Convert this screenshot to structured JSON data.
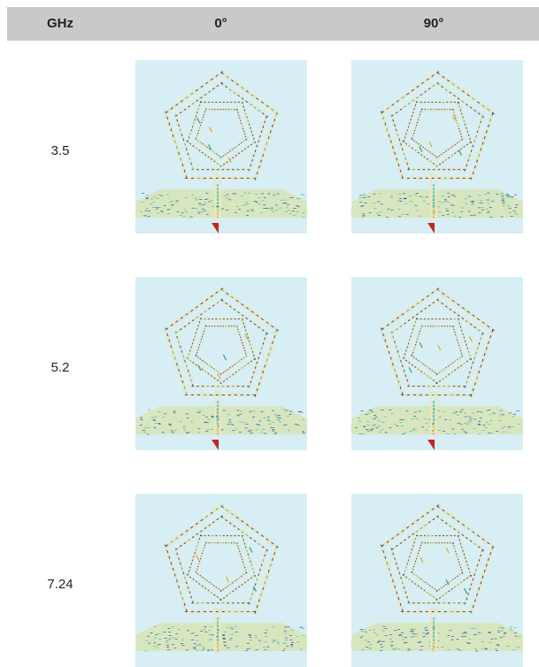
{
  "header": {
    "col_freq": "GHz",
    "col_0": "0°",
    "col_90": "90°"
  },
  "rows": [
    {
      "freq": "3.5"
    },
    {
      "freq": "5.2"
    },
    {
      "freq": "7.24"
    }
  ],
  "colors": {
    "header_bg": "#c8c9cb",
    "sim_bg": "#d8eef5",
    "antenna_trace": "#e8e6c4",
    "ground_plane": "#d8e6c0",
    "arrows_low": "#1a3fae",
    "arrows_mid": "#3bb08a",
    "arrows_high": "#e4b43a",
    "feed_port": "#c0281c"
  }
}
